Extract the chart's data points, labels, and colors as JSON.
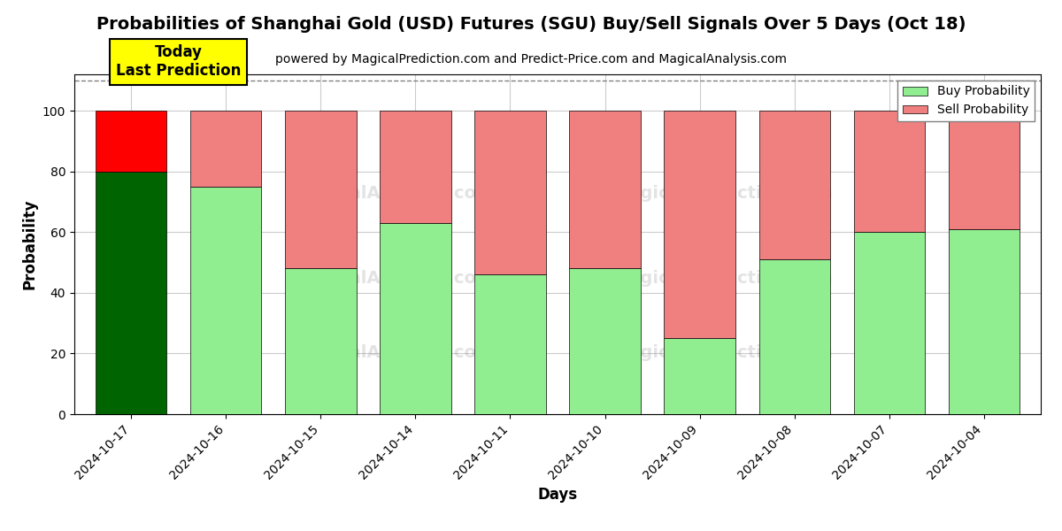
{
  "title": "Probabilities of Shanghai Gold (USD) Futures (SGU) Buy/Sell Signals Over 5 Days (Oct 18)",
  "subtitle": "powered by MagicalPrediction.com and Predict-Price.com and MagicalAnalysis.com",
  "xlabel": "Days",
  "ylabel": "Probability",
  "categories": [
    "2024-10-17",
    "2024-10-16",
    "2024-10-15",
    "2024-10-14",
    "2024-10-11",
    "2024-10-10",
    "2024-10-09",
    "2024-10-08",
    "2024-10-07",
    "2024-10-04"
  ],
  "buy_probs": [
    80,
    75,
    48,
    63,
    46,
    48,
    25,
    51,
    60,
    61
  ],
  "sell_probs": [
    20,
    25,
    52,
    37,
    54,
    52,
    75,
    49,
    40,
    39
  ],
  "today_buy_color": "#006400",
  "today_sell_color": "#ff0000",
  "buy_color": "#90EE90",
  "sell_color": "#F08080",
  "today_label": "Today\nLast Prediction",
  "ylim": [
    0,
    112
  ],
  "dashed_line_y": 110,
  "background_color": "#ffffff",
  "grid_color": "#cccccc",
  "bar_width": 0.75,
  "legend_buy": "Buy Probability",
  "legend_sell": "Sell Probability"
}
